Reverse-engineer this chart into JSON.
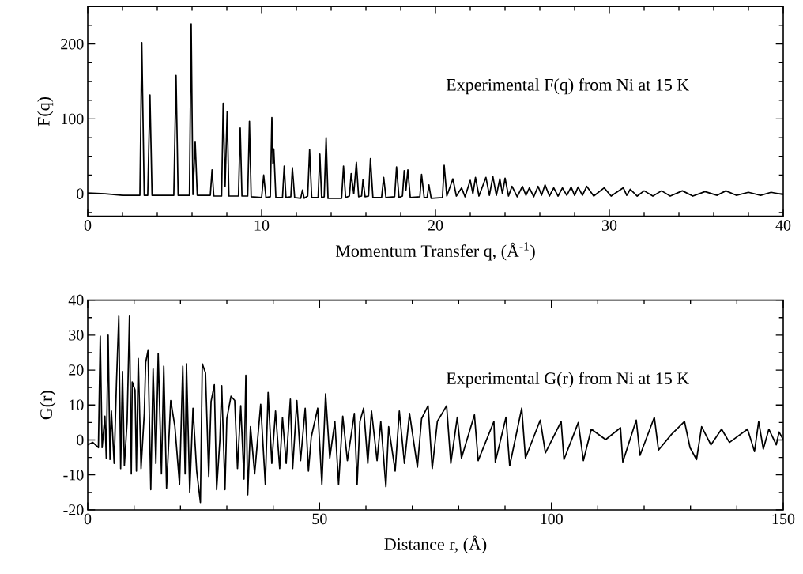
{
  "chart_data": [
    {
      "type": "line",
      "xlabel": "Momentum Transfer q, (Å$^{-1}$)",
      "ylabel": "F(q)",
      "color": "#000000",
      "annotations": [
        "Experimental F(q) from Ni at 15 K"
      ],
      "xlim": [
        0,
        40
      ],
      "ylim": [
        -30,
        250
      ],
      "xticks": [
        0,
        {
          "value": 2,
          "label": null
        },
        {
          "value": 4,
          "label": null
        },
        {
          "value": 6,
          "label": null
        },
        {
          "value": 8,
          "label": null
        },
        10,
        {
          "value": 12,
          "label": null
        },
        {
          "value": 14,
          "label": null
        },
        {
          "value": 16,
          "label": null
        },
        {
          "value": 18,
          "label": null
        },
        20,
        {
          "value": 22,
          "label": null
        },
        {
          "value": 24,
          "label": null
        },
        {
          "value": 26,
          "label": null
        },
        {
          "value": 28,
          "label": null
        },
        30,
        {
          "value": 32,
          "label": null
        },
        {
          "value": 34,
          "label": null
        },
        {
          "value": 36,
          "label": null
        },
        {
          "value": 38,
          "label": null
        },
        40
      ],
      "yticks": [
        {
          "value": -25,
          "label": null
        },
        0,
        {
          "value": 25,
          "label": null
        },
        {
          "value": 50,
          "label": null
        },
        {
          "value": 75,
          "label": null
        },
        100,
        {
          "value": 125,
          "label": null
        },
        {
          "value": 150,
          "label": null
        },
        {
          "value": 175,
          "label": null
        },
        200,
        {
          "value": 225,
          "label": null
        }
      ],
      "x": [
        0,
        1,
        2,
        3.0,
        3.11,
        3.25,
        3.45,
        3.58,
        3.7,
        4.95,
        5.08,
        5.2,
        5.85,
        5.95,
        6.05,
        6.18,
        6.3,
        7.05,
        7.15,
        7.25,
        7.7,
        7.79,
        7.9,
        8.02,
        8.12,
        8.67,
        8.77,
        8.87,
        9.2,
        9.3,
        9.4,
        10.0,
        10.12,
        10.25,
        10.5,
        10.59,
        10.65,
        10.7,
        10.82,
        11.2,
        11.3,
        11.4,
        11.68,
        11.77,
        11.9,
        12.25,
        12.35,
        12.45,
        12.65,
        12.76,
        12.88,
        13.25,
        13.35,
        13.45,
        13.6,
        13.71,
        13.82,
        14.6,
        14.71,
        14.83,
        15.05,
        15.15,
        15.3,
        15.45,
        15.58,
        15.75,
        15.83,
        15.95,
        16.15,
        16.26,
        16.4,
        16.9,
        17.02,
        17.15,
        17.65,
        17.76,
        17.9,
        18.1,
        18.2,
        18.3,
        18.41,
        18.55,
        19.1,
        19.2,
        19.35,
        19.52,
        19.62,
        19.75,
        20.4,
        20.5,
        20.65,
        21.0,
        21.2,
        21.5,
        21.7,
        22.0,
        22.15,
        22.3,
        22.5,
        22.9,
        23.1,
        23.3,
        23.5,
        23.7,
        23.85,
        24.0,
        24.2,
        24.4,
        24.7,
        25.0,
        25.2,
        25.4,
        25.65,
        25.9,
        26.1,
        26.3,
        26.55,
        26.8,
        27.05,
        27.3,
        27.55,
        27.8,
        28.0,
        28.2,
        28.45,
        28.7,
        29.1,
        29.7,
        30.1,
        30.8,
        31.0,
        31.2,
        31.6,
        32.0,
        32.5,
        33.0,
        33.5,
        34.2,
        34.8,
        35.5,
        36.2,
        36.7,
        37.3,
        38.0,
        38.7,
        39.3,
        40
      ],
      "values": [
        1,
        0,
        -2,
        -2,
        202,
        -2,
        -2,
        132,
        -2,
        -2,
        158,
        -2,
        -2,
        227,
        -1,
        70,
        -2,
        -2,
        32,
        -3,
        -3,
        121,
        10,
        110,
        -3,
        -3,
        88,
        -3,
        -3,
        97,
        -4,
        -5,
        25,
        -5,
        -4,
        102,
        40,
        60,
        -5,
        -5,
        37,
        -5,
        -4,
        35,
        -5,
        -6,
        5,
        -6,
        -3,
        59,
        -5,
        -5,
        53,
        -5,
        -4,
        75,
        -6,
        -6,
        37,
        -5,
        -3,
        27,
        0,
        42,
        -4,
        -3,
        19,
        -4,
        -3,
        47,
        -5,
        -5,
        22,
        -5,
        -4,
        36,
        -5,
        -3,
        31,
        5,
        32,
        -5,
        -4,
        26,
        -5,
        -5,
        12,
        -6,
        -5,
        38,
        -3,
        20,
        -3,
        8,
        -4,
        18,
        0,
        22,
        -3,
        22,
        -2,
        23,
        -2,
        20,
        0,
        21,
        -3,
        10,
        -4,
        10,
        -2,
        8,
        -4,
        10,
        -2,
        12,
        -3,
        8,
        -3,
        8,
        -2,
        9,
        -2,
        9,
        -2,
        10,
        -3,
        8,
        -3,
        8,
        -2,
        6,
        -3,
        4,
        -3,
        4,
        -3,
        4,
        -3,
        3,
        -2,
        4,
        -2,
        2,
        -2,
        2,
        -1
      ]
    },
    {
      "type": "line",
      "xlabel": "Distance r, (Å)",
      "ylabel": "G(r)",
      "color": "#000000",
      "annotations": [
        "Experimental G(r) from Ni at 15 K"
      ],
      "xlim": [
        0,
        150
      ],
      "ylim": [
        -20,
        40
      ],
      "xticks": [
        0,
        {
          "value": 10,
          "label": null
        },
        {
          "value": 20,
          "label": null
        },
        {
          "value": 30,
          "label": null
        },
        {
          "value": 40,
          "label": null
        },
        50,
        {
          "value": 60,
          "label": null
        },
        {
          "value": 70,
          "label": null
        },
        {
          "value": 80,
          "label": null
        },
        {
          "value": 90,
          "label": null
        },
        100,
        {
          "value": 110,
          "label": null
        },
        {
          "value": 120,
          "label": null
        },
        {
          "value": 130,
          "label": null
        },
        {
          "value": 140,
          "label": null
        },
        150
      ],
      "yticks": [
        -20,
        {
          "value": -15,
          "label": null
        },
        -10,
        {
          "value": -5,
          "label": null
        },
        0,
        {
          "value": 5,
          "label": null
        },
        10,
        {
          "value": 15,
          "label": null
        },
        20,
        {
          "value": 25,
          "label": null
        },
        30,
        {
          "value": 35,
          "label": null
        },
        40
      ],
      "x": [
        0,
        1.1,
        2.3,
        2.7,
        3.1,
        3.7,
        4.0,
        4.4,
        4.8,
        5.1,
        5.7,
        6.2,
        6.7,
        7.1,
        7.5,
        7.9,
        8.5,
        9.0,
        9.4,
        9.6,
        10.2,
        10.5,
        10.9,
        11.5,
        12.2,
        12.5,
        13.0,
        13.6,
        14.1,
        14.7,
        15.2,
        15.9,
        16.4,
        17.0,
        17.9,
        18.8,
        19.8,
        20.5,
        21.0,
        21.3,
        22.0,
        22.7,
        23.5,
        24.3,
        24.7,
        25.4,
        26.1,
        26.6,
        27.3,
        27.8,
        28.5,
        28.9,
        29.6,
        30.0,
        30.9,
        31.7,
        32.3,
        33.0,
        33.7,
        34.1,
        34.5,
        35.1,
        36.0,
        37.3,
        38.3,
        38.9,
        39.7,
        40.5,
        41.4,
        42.0,
        42.8,
        43.7,
        44.2,
        45.1,
        45.9,
        46.9,
        47.6,
        48.2,
        49.6,
        50.5,
        51.3,
        52.2,
        53.3,
        54.1,
        55.0,
        56.0,
        57.5,
        58.1,
        58.7,
        59.5,
        60.4,
        61.2,
        62.4,
        63.2,
        64.3,
        64.9,
        66.3,
        67.2,
        68.3,
        69.4,
        71.1,
        72.0,
        73.4,
        74.3,
        75.4,
        77.4,
        78.3,
        79.7,
        80.6,
        83.4,
        84.2,
        87.6,
        87.9,
        90.2,
        91.0,
        93.6,
        94.4,
        97.6,
        98.7,
        102.1,
        102.7,
        105.8,
        106.9,
        108.6,
        111.7,
        114.9,
        115.4,
        118.3,
        119.1,
        122.2,
        123.1,
        125.9,
        128.7,
        129.9,
        131.3,
        132.4,
        134.4,
        136.7,
        138.4,
        142.3,
        143.8,
        144.7,
        145.7,
        146.9,
        148.5,
        149.1,
        150
      ],
      "values": [
        -1.4,
        -0.7,
        -2.2,
        29.7,
        -2.2,
        6.8,
        -5.2,
        30,
        -5.6,
        8.3,
        -6.7,
        16.6,
        35.4,
        -8.2,
        19.6,
        -7.4,
        5.3,
        35.4,
        -9.7,
        16.6,
        14.3,
        -8.9,
        23.3,
        -8.2,
        7.6,
        22.2,
        25.6,
        -14.2,
        20.3,
        -6.7,
        24.8,
        -9.7,
        21.1,
        -13.8,
        11.3,
        3.8,
        -12.7,
        21.1,
        -9.7,
        21.8,
        -14.9,
        9.1,
        -8.9,
        -17.9,
        21.8,
        19.2,
        -10.4,
        11.0,
        15.8,
        -14.2,
        0,
        15.5,
        -14.2,
        6.1,
        12.5,
        11.3,
        -8.2,
        9.8,
        -11.2,
        18.5,
        -15.7,
        3.8,
        -9.7,
        10.2,
        -12.7,
        13.6,
        -6.7,
        8.3,
        -8.2,
        6.5,
        -6.7,
        11.7,
        -8.2,
        11.3,
        -5.9,
        9.1,
        -8.9,
        0.8,
        9.1,
        -12.7,
        13.2,
        -5.2,
        5.3,
        -12.7,
        6.8,
        -5.9,
        7.6,
        -12.7,
        5.3,
        9.1,
        -6.7,
        8.3,
        -5.9,
        5.3,
        -13.4,
        3.8,
        -8.9,
        8.3,
        -6.7,
        7.6,
        -7.8,
        6.1,
        9.8,
        -8.2,
        5.3,
        9.8,
        -6.7,
        6.5,
        -5.2,
        7.2,
        -5.9,
        5.3,
        -6.3,
        6.5,
        -7.4,
        9.1,
        -5.2,
        5.7,
        -3.7,
        5.3,
        -5.6,
        5.0,
        -5.9,
        3.1,
        0.1,
        3.5,
        -6.3,
        5.7,
        -4.4,
        6.5,
        -2.9,
        1.6,
        5.3,
        -2.2,
        -5.6,
        3.8,
        -1.4,
        3.1,
        -0.7,
        3.1,
        -3.3,
        5.3,
        -2.6,
        3.1,
        -1.4,
        2.3,
        0.1
      ]
    }
  ]
}
